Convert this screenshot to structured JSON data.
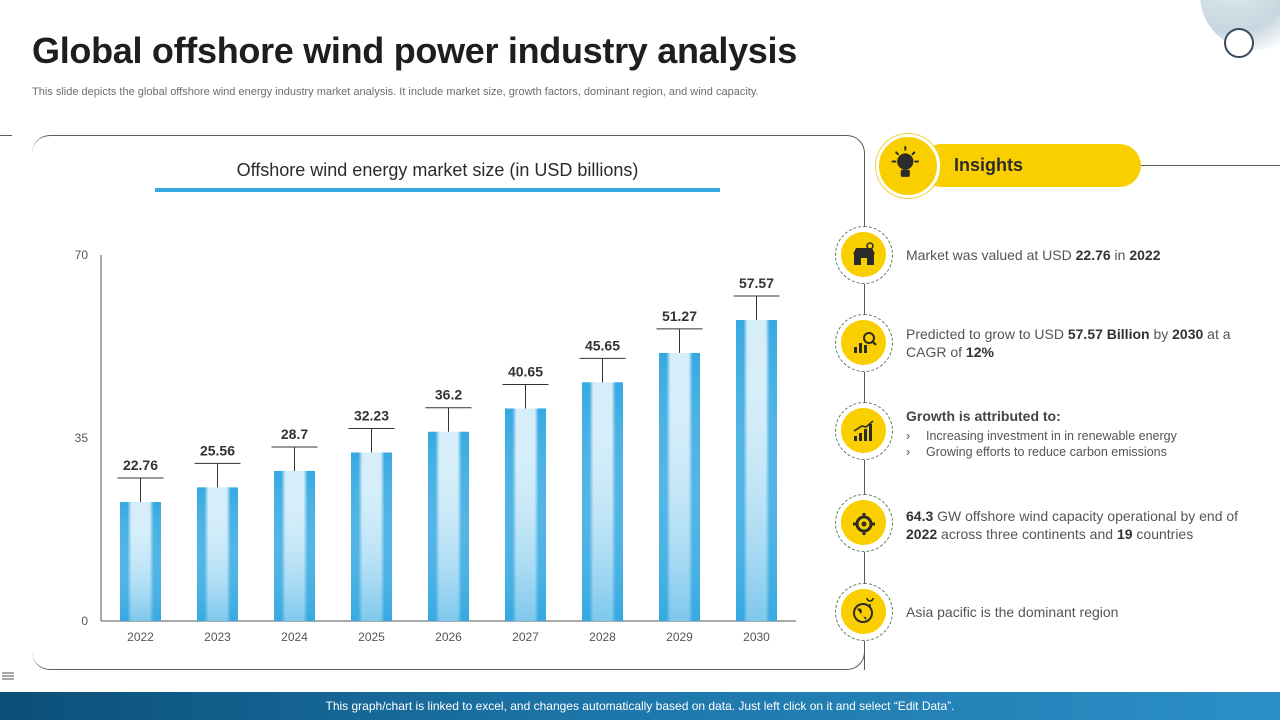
{
  "slide": {
    "title": "Global offshore wind power industry analysis",
    "subtitle": "This slide depicts the global offshore wind energy industry market analysis. It include market size, growth factors, dominant region, and wind capacity.",
    "footer": "This graph/chart is linked to excel, and changes automatically based on data. Just left click on it and select “Edit Data”."
  },
  "chart_data": {
    "type": "bar",
    "title": "Offshore wind energy market size (in USD billions)",
    "categories": [
      "2022",
      "2023",
      "2024",
      "2025",
      "2026",
      "2027",
      "2028",
      "2029",
      "2030"
    ],
    "values": [
      22.76,
      25.56,
      28.7,
      32.23,
      36.2,
      40.65,
      45.65,
      51.27,
      57.57
    ],
    "value_labels": [
      "22.76",
      "25.56",
      "28.7",
      "32.23",
      "36.2",
      "40.65",
      "45.65",
      "51.27",
      "57.57"
    ],
    "yticks": [
      0,
      35,
      70
    ],
    "ylim": [
      0,
      70
    ],
    "xlabel": "",
    "ylabel": "",
    "bar_color": "#36a9e1"
  },
  "insights": {
    "header": "Insights",
    "accent_color": "#f9cf00",
    "items": [
      {
        "icon": "market-store-icon",
        "parts": [
          {
            "t": "Market was valued at USD "
          },
          {
            "t": "22.76",
            "b": true
          },
          {
            "t": " in "
          },
          {
            "t": "2022",
            "b": true
          }
        ]
      },
      {
        "icon": "growth-analysis-icon",
        "parts": [
          {
            "t": "Predicted to grow to USD "
          },
          {
            "t": "57.57 Billion",
            "b": true
          },
          {
            "t": " by "
          },
          {
            "t": "2030",
            "b": true
          },
          {
            "t": " at a CAGR of "
          },
          {
            "t": "12%",
            "b": true
          }
        ]
      },
      {
        "icon": "bar-growth-icon",
        "heading": "Growth is attributed to:",
        "bullets": [
          "Increasing investment in in renewable energy",
          "Growing efforts to reduce carbon emissions"
        ]
      },
      {
        "icon": "capacity-gear-icon",
        "parts": [
          {
            "t": "64.3",
            "b": true
          },
          {
            "t": " GW offshore wind capacity operational by end of "
          },
          {
            "t": "2022",
            "b": true
          },
          {
            "t": " across three continents and "
          },
          {
            "t": "19",
            "b": true
          },
          {
            "t": " countries"
          }
        ]
      },
      {
        "icon": "globe-region-icon",
        "parts": [
          {
            "t": "Asia pacific is the dominant region"
          }
        ]
      }
    ]
  }
}
